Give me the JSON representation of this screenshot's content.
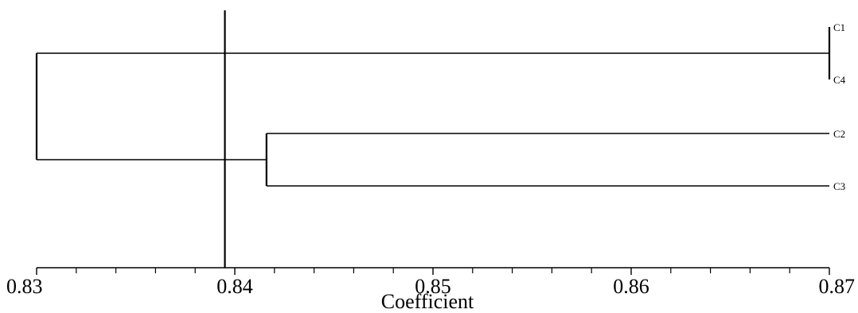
{
  "chart_data": {
    "type": "dendrogram",
    "title": "",
    "xlabel": "Coefficient",
    "ylabel": "",
    "xlim": [
      0.83,
      0.87
    ],
    "major_ticks": [
      0.83,
      0.84,
      0.85,
      0.86,
      0.87
    ],
    "tick_labels": [
      "0.83",
      "0.84",
      "0.85",
      "0.86",
      "0.87"
    ],
    "minor_tick_step": 0.002,
    "cutoff_line": 0.8395,
    "leaves": [
      "C1",
      "C4",
      "C2",
      "C3"
    ],
    "merges": [
      {
        "children": [
          "C1",
          "C4"
        ],
        "coefficient": 0.87
      },
      {
        "children": [
          "C2",
          "C3"
        ],
        "coefficient": 0.8416
      },
      {
        "children": [
          "C1-C4",
          "C2-C3"
        ],
        "coefficient": 0.83
      }
    ],
    "grid": false
  }
}
